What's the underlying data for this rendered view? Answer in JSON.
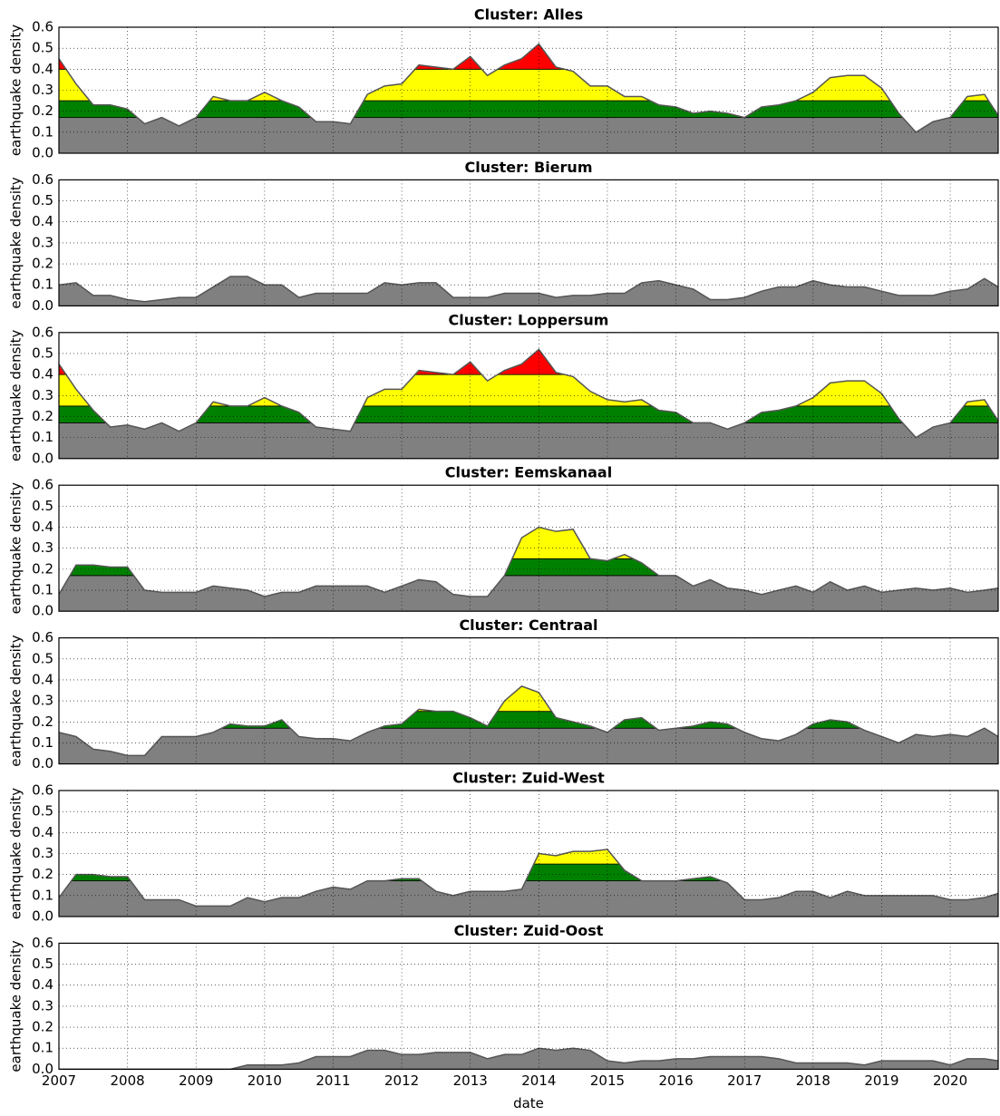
{
  "color_levels": [
    {
      "from": 0,
      "to": 0.17,
      "color": "#808080"
    },
    {
      "from": 0.17,
      "to": 0.25,
      "color": "#008000"
    },
    {
      "from": 0.25,
      "to": 0.4,
      "color": "#ffff00"
    },
    {
      "from": 0.4,
      "to": 0.6,
      "color": "#ff0000"
    }
  ],
  "chart_data": [
    {
      "type": "area",
      "title": "Cluster: Alles",
      "ylabel": "earthquake density",
      "x": [
        2007,
        2007.25,
        2007.5,
        2007.75,
        2008,
        2008.25,
        2008.5,
        2008.75,
        2009,
        2009.25,
        2009.5,
        2009.75,
        2010,
        2010.25,
        2010.5,
        2010.75,
        2011,
        2011.25,
        2011.5,
        2011.75,
        2012,
        2012.25,
        2012.5,
        2012.75,
        2013,
        2013.25,
        2013.5,
        2013.75,
        2014,
        2014.25,
        2014.5,
        2014.75,
        2015,
        2015.25,
        2015.5,
        2015.75,
        2016,
        2016.25,
        2016.5,
        2016.75,
        2017,
        2017.25,
        2017.5,
        2017.75,
        2018,
        2018.25,
        2018.5,
        2018.75,
        2019,
        2019.25,
        2019.5,
        2019.75,
        2020,
        2020.25,
        2020.5,
        2020.7
      ],
      "values": [
        0.45,
        0.33,
        0.23,
        0.23,
        0.21,
        0.14,
        0.17,
        0.13,
        0.17,
        0.27,
        0.25,
        0.25,
        0.29,
        0.25,
        0.22,
        0.15,
        0.15,
        0.14,
        0.28,
        0.32,
        0.33,
        0.42,
        0.41,
        0.4,
        0.46,
        0.37,
        0.42,
        0.45,
        0.52,
        0.41,
        0.39,
        0.32,
        0.32,
        0.27,
        0.27,
        0.23,
        0.22,
        0.19,
        0.2,
        0.19,
        0.17,
        0.22,
        0.23,
        0.25,
        0.29,
        0.36,
        0.37,
        0.37,
        0.31,
        0.19,
        0.1,
        0.15,
        0.17,
        0.27,
        0.28,
        0.18
      ],
      "xlim": [
        2007,
        2020.7
      ],
      "ylim": [
        0,
        0.6
      ],
      "xticks": [
        2007,
        2008,
        2009,
        2010,
        2011,
        2012,
        2013,
        2014,
        2015,
        2016,
        2017,
        2018,
        2019,
        2020
      ],
      "yticks": [
        {
          "value": 0,
          "label": "0.0"
        },
        0.1,
        0.2,
        0.3,
        0.4,
        0.5,
        0.6
      ],
      "grid": true
    },
    {
      "type": "area",
      "title": "Cluster: Bierum",
      "ylabel": "earthquake density",
      "x": [
        2007,
        2007.25,
        2007.5,
        2007.75,
        2008,
        2008.25,
        2008.5,
        2008.75,
        2009,
        2009.25,
        2009.5,
        2009.75,
        2010,
        2010.25,
        2010.5,
        2010.75,
        2011,
        2011.25,
        2011.5,
        2011.75,
        2012,
        2012.25,
        2012.5,
        2012.75,
        2013,
        2013.25,
        2013.5,
        2013.75,
        2014,
        2014.25,
        2014.5,
        2014.75,
        2015,
        2015.25,
        2015.5,
        2015.75,
        2016,
        2016.25,
        2016.5,
        2016.75,
        2017,
        2017.25,
        2017.5,
        2017.75,
        2018,
        2018.25,
        2018.5,
        2018.75,
        2019,
        2019.25,
        2019.5,
        2019.75,
        2020,
        2020.25,
        2020.5,
        2020.7
      ],
      "values": [
        0.1,
        0.11,
        0.05,
        0.05,
        0.03,
        0.02,
        0.03,
        0.04,
        0.04,
        0.09,
        0.14,
        0.14,
        0.1,
        0.1,
        0.04,
        0.06,
        0.06,
        0.06,
        0.06,
        0.11,
        0.1,
        0.11,
        0.11,
        0.04,
        0.04,
        0.04,
        0.06,
        0.06,
        0.06,
        0.04,
        0.05,
        0.05,
        0.06,
        0.06,
        0.11,
        0.12,
        0.1,
        0.08,
        0.03,
        0.03,
        0.04,
        0.07,
        0.09,
        0.09,
        0.12,
        0.1,
        0.09,
        0.09,
        0.07,
        0.05,
        0.05,
        0.05,
        0.07,
        0.08,
        0.13,
        0.09
      ],
      "xlim": [
        2007,
        2020.7
      ],
      "ylim": [
        0,
        0.6
      ],
      "xticks": [
        2007,
        2008,
        2009,
        2010,
        2011,
        2012,
        2013,
        2014,
        2015,
        2016,
        2017,
        2018,
        2019,
        2020
      ],
      "yticks": [
        {
          "value": 0,
          "label": "0.0"
        },
        0.1,
        0.2,
        0.3,
        0.4,
        0.5,
        0.6
      ],
      "grid": true
    },
    {
      "type": "area",
      "title": "Cluster: Loppersum",
      "ylabel": "earthquake density",
      "x": [
        2007,
        2007.25,
        2007.5,
        2007.75,
        2008,
        2008.25,
        2008.5,
        2008.75,
        2009,
        2009.25,
        2009.5,
        2009.75,
        2010,
        2010.25,
        2010.5,
        2010.75,
        2011,
        2011.25,
        2011.5,
        2011.75,
        2012,
        2012.25,
        2012.5,
        2012.75,
        2013,
        2013.25,
        2013.5,
        2013.75,
        2014,
        2014.25,
        2014.5,
        2014.75,
        2015,
        2015.25,
        2015.5,
        2015.75,
        2016,
        2016.25,
        2016.5,
        2016.75,
        2017,
        2017.25,
        2017.5,
        2017.75,
        2018,
        2018.25,
        2018.5,
        2018.75,
        2019,
        2019.25,
        2019.5,
        2019.75,
        2020,
        2020.25,
        2020.5,
        2020.7
      ],
      "values": [
        0.45,
        0.33,
        0.23,
        0.15,
        0.16,
        0.14,
        0.17,
        0.13,
        0.17,
        0.27,
        0.25,
        0.25,
        0.29,
        0.25,
        0.22,
        0.15,
        0.14,
        0.13,
        0.29,
        0.33,
        0.33,
        0.42,
        0.41,
        0.4,
        0.46,
        0.37,
        0.42,
        0.45,
        0.52,
        0.41,
        0.39,
        0.32,
        0.28,
        0.27,
        0.28,
        0.23,
        0.22,
        0.17,
        0.17,
        0.14,
        0.17,
        0.22,
        0.23,
        0.25,
        0.29,
        0.36,
        0.37,
        0.37,
        0.31,
        0.19,
        0.1,
        0.15,
        0.17,
        0.27,
        0.28,
        0.18
      ],
      "xlim": [
        2007,
        2020.7
      ],
      "ylim": [
        0,
        0.6
      ],
      "xticks": [
        2007,
        2008,
        2009,
        2010,
        2011,
        2012,
        2013,
        2014,
        2015,
        2016,
        2017,
        2018,
        2019,
        2020
      ],
      "yticks": [
        {
          "value": 0,
          "label": "0.0"
        },
        0.1,
        0.2,
        0.3,
        0.4,
        0.5,
        0.6
      ],
      "grid": true
    },
    {
      "type": "area",
      "title": "Cluster: Eemskanaal",
      "ylabel": "earthquake density",
      "x": [
        2007,
        2007.25,
        2007.5,
        2007.75,
        2008,
        2008.25,
        2008.5,
        2008.75,
        2009,
        2009.25,
        2009.5,
        2009.75,
        2010,
        2010.25,
        2010.5,
        2010.75,
        2011,
        2011.25,
        2011.5,
        2011.75,
        2012,
        2012.25,
        2012.5,
        2012.75,
        2013,
        2013.25,
        2013.5,
        2013.75,
        2014,
        2014.25,
        2014.5,
        2014.75,
        2015,
        2015.25,
        2015.5,
        2015.75,
        2016,
        2016.25,
        2016.5,
        2016.75,
        2017,
        2017.25,
        2017.5,
        2017.75,
        2018,
        2018.25,
        2018.5,
        2018.75,
        2019,
        2019.25,
        2019.5,
        2019.75,
        2020,
        2020.25,
        2020.5,
        2020.7
      ],
      "values": [
        0.08,
        0.22,
        0.22,
        0.21,
        0.21,
        0.1,
        0.09,
        0.09,
        0.09,
        0.12,
        0.11,
        0.1,
        0.07,
        0.09,
        0.09,
        0.12,
        0.12,
        0.12,
        0.12,
        0.09,
        0.12,
        0.15,
        0.14,
        0.08,
        0.07,
        0.07,
        0.17,
        0.35,
        0.4,
        0.38,
        0.39,
        0.25,
        0.24,
        0.27,
        0.23,
        0.17,
        0.17,
        0.12,
        0.15,
        0.11,
        0.1,
        0.08,
        0.1,
        0.12,
        0.09,
        0.14,
        0.1,
        0.12,
        0.09,
        0.1,
        0.11,
        0.1,
        0.11,
        0.09,
        0.1,
        0.11
      ],
      "xlim": [
        2007,
        2020.7
      ],
      "ylim": [
        0,
        0.6
      ],
      "xticks": [
        2007,
        2008,
        2009,
        2010,
        2011,
        2012,
        2013,
        2014,
        2015,
        2016,
        2017,
        2018,
        2019,
        2020
      ],
      "yticks": [
        {
          "value": 0,
          "label": "0.0"
        },
        0.1,
        0.2,
        0.3,
        0.4,
        0.5,
        0.6
      ],
      "grid": true
    },
    {
      "type": "area",
      "title": "Cluster: Centraal",
      "ylabel": "earthquake density",
      "x": [
        2007,
        2007.25,
        2007.5,
        2007.75,
        2008,
        2008.25,
        2008.5,
        2008.75,
        2009,
        2009.25,
        2009.5,
        2009.75,
        2010,
        2010.25,
        2010.5,
        2010.75,
        2011,
        2011.25,
        2011.5,
        2011.75,
        2012,
        2012.25,
        2012.5,
        2012.75,
        2013,
        2013.25,
        2013.5,
        2013.75,
        2014,
        2014.25,
        2014.5,
        2014.75,
        2015,
        2015.25,
        2015.5,
        2015.75,
        2016,
        2016.25,
        2016.5,
        2016.75,
        2017,
        2017.25,
        2017.5,
        2017.75,
        2018,
        2018.25,
        2018.5,
        2018.75,
        2019,
        2019.25,
        2019.5,
        2019.75,
        2020,
        2020.25,
        2020.5,
        2020.7
      ],
      "values": [
        0.15,
        0.13,
        0.07,
        0.06,
        0.04,
        0.04,
        0.13,
        0.13,
        0.13,
        0.15,
        0.19,
        0.18,
        0.18,
        0.21,
        0.13,
        0.12,
        0.12,
        0.11,
        0.15,
        0.18,
        0.19,
        0.26,
        0.25,
        0.25,
        0.22,
        0.18,
        0.3,
        0.37,
        0.34,
        0.22,
        0.2,
        0.18,
        0.15,
        0.21,
        0.22,
        0.16,
        0.17,
        0.18,
        0.2,
        0.19,
        0.15,
        0.12,
        0.11,
        0.14,
        0.19,
        0.21,
        0.2,
        0.16,
        0.13,
        0.1,
        0.14,
        0.13,
        0.14,
        0.13,
        0.17,
        0.13
      ],
      "xlim": [
        2007,
        2020.7
      ],
      "ylim": [
        0,
        0.6
      ],
      "xticks": [
        2007,
        2008,
        2009,
        2010,
        2011,
        2012,
        2013,
        2014,
        2015,
        2016,
        2017,
        2018,
        2019,
        2020
      ],
      "yticks": [
        {
          "value": 0,
          "label": "0.0"
        },
        0.1,
        0.2,
        0.3,
        0.4,
        0.5,
        0.6
      ],
      "grid": true
    },
    {
      "type": "area",
      "title": "Cluster: Zuid-West",
      "ylabel": "earthquake density",
      "x": [
        2007,
        2007.25,
        2007.5,
        2007.75,
        2008,
        2008.25,
        2008.5,
        2008.75,
        2009,
        2009.25,
        2009.5,
        2009.75,
        2010,
        2010.25,
        2010.5,
        2010.75,
        2011,
        2011.25,
        2011.5,
        2011.75,
        2012,
        2012.25,
        2012.5,
        2012.75,
        2013,
        2013.25,
        2013.5,
        2013.75,
        2014,
        2014.25,
        2014.5,
        2014.75,
        2015,
        2015.25,
        2015.5,
        2015.75,
        2016,
        2016.25,
        2016.5,
        2016.75,
        2017,
        2017.25,
        2017.5,
        2017.75,
        2018,
        2018.25,
        2018.5,
        2018.75,
        2019,
        2019.25,
        2019.5,
        2019.75,
        2020,
        2020.25,
        2020.5,
        2020.7
      ],
      "values": [
        0.09,
        0.2,
        0.2,
        0.19,
        0.19,
        0.08,
        0.08,
        0.08,
        0.05,
        0.05,
        0.05,
        0.09,
        0.07,
        0.09,
        0.09,
        0.12,
        0.14,
        0.13,
        0.17,
        0.17,
        0.18,
        0.18,
        0.12,
        0.1,
        0.12,
        0.12,
        0.12,
        0.13,
        0.3,
        0.29,
        0.31,
        0.31,
        0.32,
        0.22,
        0.17,
        0.17,
        0.17,
        0.18,
        0.19,
        0.16,
        0.08,
        0.08,
        0.09,
        0.12,
        0.12,
        0.09,
        0.12,
        0.1,
        0.1,
        0.1,
        0.1,
        0.1,
        0.08,
        0.08,
        0.09,
        0.11
      ],
      "xlim": [
        2007,
        2020.7
      ],
      "ylim": [
        0,
        0.6
      ],
      "xticks": [
        2007,
        2008,
        2009,
        2010,
        2011,
        2012,
        2013,
        2014,
        2015,
        2016,
        2017,
        2018,
        2019,
        2020
      ],
      "yticks": [
        {
          "value": 0,
          "label": "0.0"
        },
        0.1,
        0.2,
        0.3,
        0.4,
        0.5,
        0.6
      ],
      "grid": true
    },
    {
      "type": "area",
      "title": "Cluster: Zuid-Oost",
      "ylabel": "earthquake density",
      "xlabel": "date",
      "x": [
        2007,
        2007.25,
        2007.5,
        2007.75,
        2008,
        2008.25,
        2008.5,
        2008.75,
        2009,
        2009.25,
        2009.5,
        2009.75,
        2010,
        2010.25,
        2010.5,
        2010.75,
        2011,
        2011.25,
        2011.5,
        2011.75,
        2012,
        2012.25,
        2012.5,
        2012.75,
        2013,
        2013.25,
        2013.5,
        2013.75,
        2014,
        2014.25,
        2014.5,
        2014.75,
        2015,
        2015.25,
        2015.5,
        2015.75,
        2016,
        2016.25,
        2016.5,
        2016.75,
        2017,
        2017.25,
        2017.5,
        2017.75,
        2018,
        2018.25,
        2018.5,
        2018.75,
        2019,
        2019.25,
        2019.5,
        2019.75,
        2020,
        2020.25,
        2020.5,
        2020.7
      ],
      "values": [
        0,
        0,
        0,
        0,
        0,
        0,
        0,
        0,
        0,
        0,
        0,
        0.02,
        0.02,
        0.02,
        0.03,
        0.06,
        0.06,
        0.06,
        0.09,
        0.09,
        0.07,
        0.07,
        0.08,
        0.08,
        0.08,
        0.05,
        0.07,
        0.07,
        0.1,
        0.09,
        0.1,
        0.09,
        0.04,
        0.03,
        0.04,
        0.04,
        0.05,
        0.05,
        0.06,
        0.06,
        0.06,
        0.06,
        0.05,
        0.03,
        0.03,
        0.03,
        0.03,
        0.02,
        0.04,
        0.04,
        0.04,
        0.04,
        0.02,
        0.05,
        0.05,
        0.04
      ],
      "xlim": [
        2007,
        2020.7
      ],
      "ylim": [
        0,
        0.6
      ],
      "xticks": [
        2007,
        2008,
        2009,
        2010,
        2011,
        2012,
        2013,
        2014,
        2015,
        2016,
        2017,
        2018,
        2019,
        2020
      ],
      "yticks": [
        {
          "value": 0,
          "label": "0.0"
        },
        0.1,
        0.2,
        0.3,
        0.4,
        0.5,
        0.6
      ],
      "grid": true
    }
  ]
}
